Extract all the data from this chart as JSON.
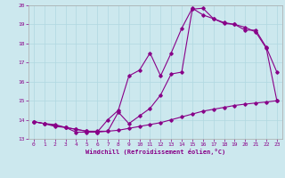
{
  "title": "",
  "xlabel": "Windchill (Refroidissement éolien,°C)",
  "ylabel": "",
  "bg_color": "#cce8ee",
  "line_color": "#880088",
  "xlim": [
    -0.5,
    23.5
  ],
  "ylim": [
    13,
    20
  ],
  "xticks": [
    0,
    1,
    2,
    3,
    4,
    5,
    6,
    7,
    8,
    9,
    10,
    11,
    12,
    13,
    14,
    15,
    16,
    17,
    18,
    19,
    20,
    21,
    22,
    23
  ],
  "yticks": [
    13,
    14,
    15,
    16,
    17,
    18,
    19,
    20
  ],
  "curve1_x": [
    0,
    1,
    2,
    3,
    4,
    5,
    6,
    7,
    8,
    9,
    10,
    11,
    12,
    13,
    14,
    15,
    16,
    17,
    18,
    19,
    20,
    21,
    22,
    23
  ],
  "curve1_y": [
    13.9,
    13.8,
    13.65,
    13.6,
    13.35,
    13.35,
    13.35,
    13.4,
    14.4,
    13.8,
    14.2,
    14.6,
    15.3,
    16.4,
    16.5,
    19.8,
    19.85,
    19.3,
    19.05,
    19.0,
    18.7,
    18.7,
    17.8,
    16.5
  ],
  "curve2_x": [
    0,
    1,
    2,
    3,
    4,
    5,
    6,
    7,
    8,
    9,
    10,
    11,
    12,
    13,
    14,
    15,
    16,
    17,
    18,
    19,
    20,
    21,
    22,
    23
  ],
  "curve2_y": [
    13.9,
    13.8,
    13.7,
    13.6,
    13.5,
    13.4,
    13.35,
    14.0,
    14.5,
    16.3,
    16.6,
    17.5,
    16.3,
    17.5,
    18.8,
    19.85,
    19.5,
    19.3,
    19.1,
    19.0,
    18.85,
    18.6,
    17.75,
    15.0
  ],
  "curve3_x": [
    0,
    1,
    2,
    3,
    4,
    5,
    6,
    7,
    8,
    9,
    10,
    11,
    12,
    13,
    14,
    15,
    16,
    17,
    18,
    19,
    20,
    21,
    22,
    23
  ],
  "curve3_y": [
    13.9,
    13.8,
    13.75,
    13.6,
    13.5,
    13.4,
    13.4,
    13.4,
    13.45,
    13.55,
    13.65,
    13.75,
    13.85,
    14.0,
    14.15,
    14.3,
    14.45,
    14.55,
    14.65,
    14.75,
    14.82,
    14.88,
    14.93,
    15.0
  ]
}
